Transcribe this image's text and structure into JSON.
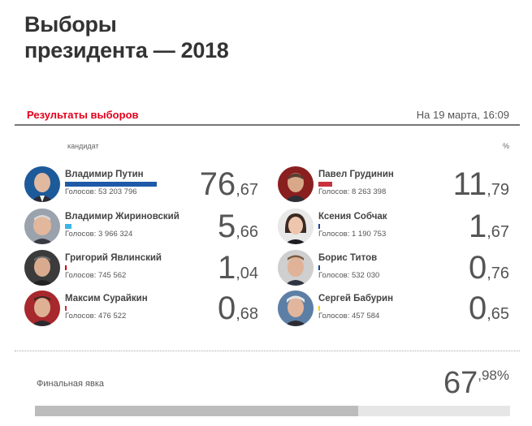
{
  "title_line1": "Выборы",
  "title_line2": "президента — 2018",
  "results_label": "Результаты выборов",
  "date_label": "На 19 марта, 16:09",
  "col_candidate": "кандидат",
  "col_percent": "%",
  "votes_prefix": "Голосов:",
  "colors": {
    "accent": "#e3001b",
    "putin": "#1e5aa8",
    "grudinin": "#c8323c",
    "zhirinovsky": "#3cb4e6",
    "sobchak": "#1e4696",
    "yavlinsky": "#cc0000",
    "titov": "#1e4696",
    "suraykin": "#c8323c",
    "baburin": "#f5d200"
  },
  "candidates": [
    {
      "name": "Владимир Путин",
      "votes": "53 203 796",
      "pct_int": "76",
      "pct_dec": "67",
      "share": 0.7667,
      "icon": "putin-portrait-icon"
    },
    {
      "name": "Павел Грудинин",
      "votes": "8 263 398",
      "pct_int": "11",
      "pct_dec": "79",
      "share": 0.1179,
      "icon": "grudinin-portrait-icon"
    },
    {
      "name": "Владимир Жириновский",
      "votes": "3 966 324",
      "pct_int": "5",
      "pct_dec": "66",
      "share": 0.0566,
      "icon": "zhirinovsky-portrait-icon"
    },
    {
      "name": "Ксения Собчак",
      "votes": "1 190 753",
      "pct_int": "1",
      "pct_dec": "67",
      "share": 0.0167,
      "icon": "sobchak-portrait-icon"
    },
    {
      "name": "Григорий Явлинский",
      "votes": "745 562",
      "pct_int": "1",
      "pct_dec": "04",
      "share": 0.0104,
      "icon": "yavlinsky-portrait-icon"
    },
    {
      "name": "Борис Титов",
      "votes": "532 030",
      "pct_int": "0",
      "pct_dec": "76",
      "share": 0.0076,
      "icon": "titov-portrait-icon"
    },
    {
      "name": "Максим Сурайкин",
      "votes": "476 522",
      "pct_int": "0",
      "pct_dec": "68",
      "share": 0.0068,
      "icon": "suraykin-portrait-icon"
    },
    {
      "name": "Сергей Бабурин",
      "votes": "457 584",
      "pct_int": "0",
      "pct_dec": "65",
      "share": 0.0065,
      "icon": "baburin-portrait-icon"
    }
  ],
  "turnout": {
    "label": "Финальная явка",
    "int": "67",
    "dec": "98%",
    "share": 0.6798
  }
}
